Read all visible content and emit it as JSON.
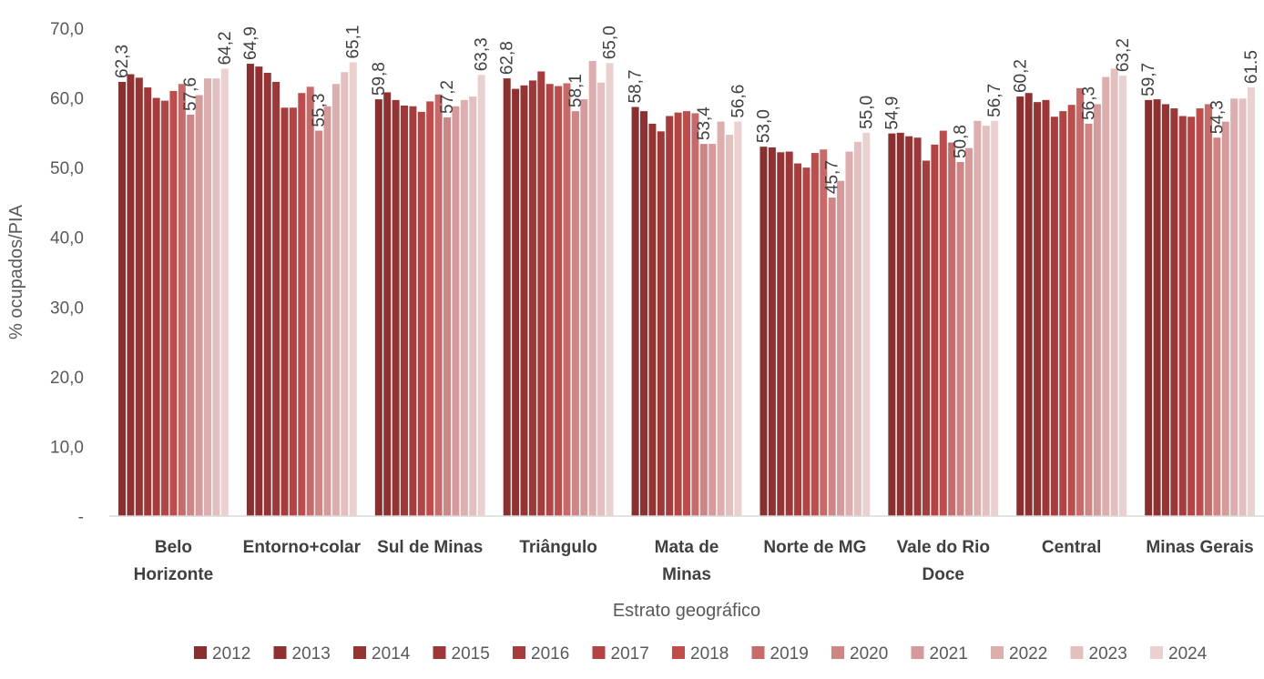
{
  "chart_data": {
    "type": "bar",
    "xlabel": "Estrato geográfico",
    "ylabel": "% ocupados/PIA",
    "ylim": [
      0,
      70
    ],
    "yticks": [
      "-",
      "10,0",
      "20,0",
      "30,0",
      "40,0",
      "50,0",
      "60,0",
      "70,0"
    ],
    "grid": false,
    "legend_position": "bottom",
    "categories": [
      [
        "Belo",
        "Horizonte"
      ],
      [
        "Entorno+colar"
      ],
      [
        "Sul de Minas"
      ],
      [
        "Triângulo"
      ],
      [
        "Mata de",
        "Minas"
      ],
      [
        "Norte de MG"
      ],
      [
        "Vale do Rio",
        "Doce"
      ],
      [
        "Central"
      ],
      [
        "Minas Gerais"
      ]
    ],
    "series": [
      {
        "name": "2012",
        "color": "#8B2E2E",
        "values": [
          62.3,
          64.9,
          59.8,
          62.8,
          58.7,
          53.0,
          54.9,
          60.2,
          59.7
        ]
      },
      {
        "name": "2013",
        "color": "#903030",
        "values": [
          63.4,
          64.5,
          60.8,
          61.3,
          58.1,
          52.9,
          55.0,
          60.7,
          59.8
        ]
      },
      {
        "name": "2014",
        "color": "#963333",
        "values": [
          62.9,
          63.6,
          59.7,
          61.8,
          56.3,
          52.2,
          54.5,
          59.4,
          59.1
        ]
      },
      {
        "name": "2015",
        "color": "#9E3737",
        "values": [
          61.5,
          62.3,
          58.9,
          62.5,
          55.2,
          52.3,
          54.3,
          59.7,
          58.5
        ]
      },
      {
        "name": "2016",
        "color": "#A83C3C",
        "values": [
          60.0,
          58.6,
          58.8,
          63.8,
          57.4,
          50.6,
          51.0,
          57.3,
          57.4
        ]
      },
      {
        "name": "2017",
        "color": "#B44343",
        "values": [
          59.6,
          58.6,
          58.0,
          62.0,
          57.9,
          50.0,
          53.3,
          58.1,
          57.3
        ]
      },
      {
        "name": "2018",
        "color": "#BF4B4B",
        "values": [
          61.0,
          60.7,
          59.5,
          61.7,
          58.1,
          52.1,
          55.3,
          59.0,
          58.5
        ]
      },
      {
        "name": "2019",
        "color": "#C96A6A",
        "values": [
          62.0,
          61.6,
          60.5,
          62.1,
          57.8,
          52.6,
          53.6,
          61.4,
          59.1
        ]
      },
      {
        "name": "2020",
        "color": "#D08585",
        "values": [
          57.6,
          55.3,
          57.2,
          58.1,
          53.4,
          45.7,
          50.8,
          56.3,
          54.3
        ]
      },
      {
        "name": "2021",
        "color": "#D79A9A",
        "values": [
          60.4,
          58.8,
          58.8,
          59.8,
          53.4,
          48.1,
          52.8,
          59.1,
          56.6
        ]
      },
      {
        "name": "2022",
        "color": "#DEADAD",
        "values": [
          62.8,
          62.0,
          59.7,
          65.3,
          56.6,
          52.3,
          56.7,
          63.0,
          59.9
        ]
      },
      {
        "name": "2023",
        "color": "#E4BFBF",
        "values": [
          62.8,
          63.7,
          60.2,
          62.2,
          54.7,
          53.7,
          56.0,
          64.2,
          59.9
        ]
      },
      {
        "name": "2024",
        "color": "#EBD0D0",
        "values": [
          64.2,
          65.1,
          63.3,
          65.0,
          56.6,
          55.0,
          56.7,
          63.2,
          61.5
        ]
      }
    ],
    "data_labels": [
      {
        "category": 0,
        "series": 0,
        "text": "62,3"
      },
      {
        "category": 0,
        "series": 8,
        "text": "57,6"
      },
      {
        "category": 0,
        "series": 12,
        "text": "64,2"
      },
      {
        "category": 1,
        "series": 0,
        "text": "64,9"
      },
      {
        "category": 1,
        "series": 8,
        "text": "55,3"
      },
      {
        "category": 1,
        "series": 12,
        "text": "65,1"
      },
      {
        "category": 2,
        "series": 0,
        "text": "59,8"
      },
      {
        "category": 2,
        "series": 8,
        "text": "57,2"
      },
      {
        "category": 2,
        "series": 12,
        "text": "63,3"
      },
      {
        "category": 3,
        "series": 0,
        "text": "62,8"
      },
      {
        "category": 3,
        "series": 8,
        "text": "58,1"
      },
      {
        "category": 3,
        "series": 12,
        "text": "65,0"
      },
      {
        "category": 4,
        "series": 0,
        "text": "58,7"
      },
      {
        "category": 4,
        "series": 8,
        "text": "53,4"
      },
      {
        "category": 4,
        "series": 12,
        "text": "56,6"
      },
      {
        "category": 5,
        "series": 0,
        "text": "53,0"
      },
      {
        "category": 5,
        "series": 8,
        "text": "45,7"
      },
      {
        "category": 5,
        "series": 12,
        "text": "55,0"
      },
      {
        "category": 6,
        "series": 0,
        "text": "54,9"
      },
      {
        "category": 6,
        "series": 8,
        "text": "50,8"
      },
      {
        "category": 6,
        "series": 12,
        "text": "56,7"
      },
      {
        "category": 7,
        "series": 0,
        "text": "60,2"
      },
      {
        "category": 7,
        "series": 8,
        "text": "56,3"
      },
      {
        "category": 7,
        "series": 12,
        "text": "63,2"
      },
      {
        "category": 8,
        "series": 0,
        "text": "59,7"
      },
      {
        "category": 8,
        "series": 8,
        "text": "54,3"
      },
      {
        "category": 8,
        "series": 12,
        "text": "61.5"
      }
    ]
  }
}
